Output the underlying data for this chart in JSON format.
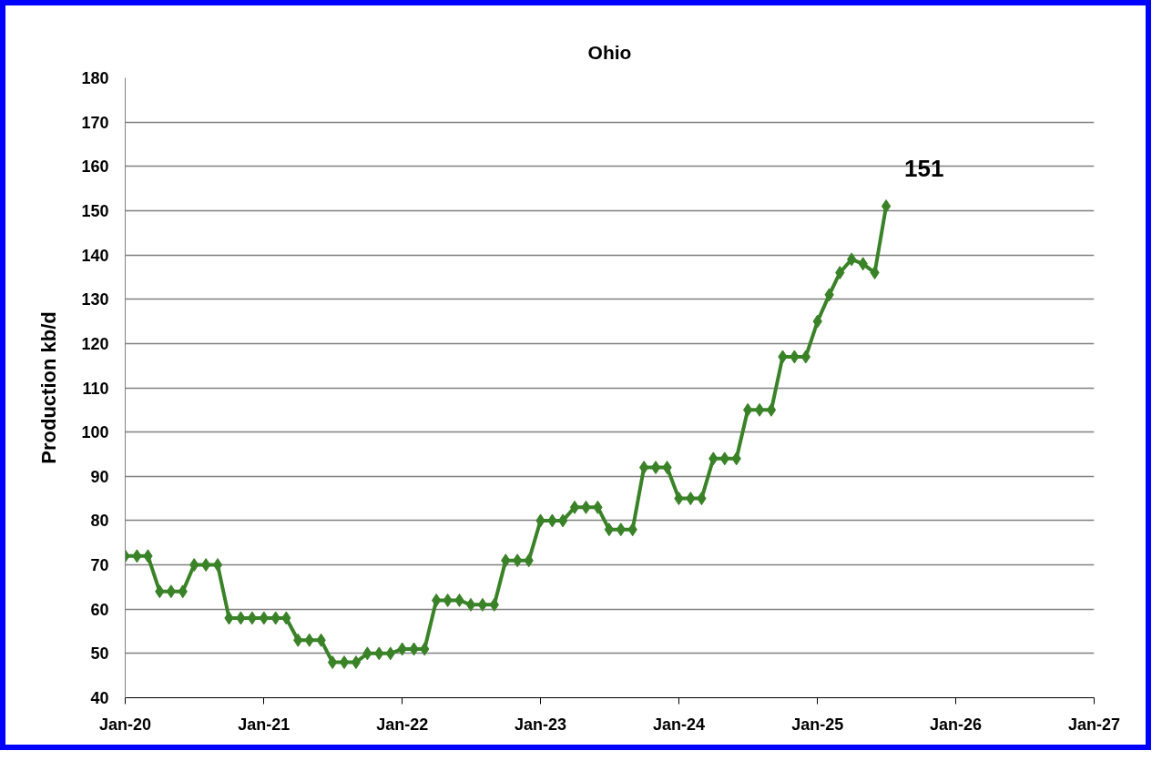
{
  "chart_data": {
    "type": "line",
    "title": "Ohio",
    "ylabel": "Production kb/d",
    "x": [
      "2020-01",
      "2020-02",
      "2020-03",
      "2020-04",
      "2020-05",
      "2020-06",
      "2020-07",
      "2020-08",
      "2020-09",
      "2020-10",
      "2020-11",
      "2020-12",
      "2021-01",
      "2021-02",
      "2021-03",
      "2021-04",
      "2021-05",
      "2021-06",
      "2021-07",
      "2021-08",
      "2021-09",
      "2021-10",
      "2021-11",
      "2021-12",
      "2022-01",
      "2022-02",
      "2022-03",
      "2022-04",
      "2022-05",
      "2022-06",
      "2022-07",
      "2022-08",
      "2022-09",
      "2022-10",
      "2022-11",
      "2022-12",
      "2023-01",
      "2023-02",
      "2023-03",
      "2023-04",
      "2023-05",
      "2023-06",
      "2023-07",
      "2023-08",
      "2023-09",
      "2023-10",
      "2023-11",
      "2023-12",
      "2024-01",
      "2024-02",
      "2024-03",
      "2024-04",
      "2024-05",
      "2024-06",
      "2024-07",
      "2024-08",
      "2024-09",
      "2024-10",
      "2024-11",
      "2024-12",
      "2025-01",
      "2025-02",
      "2025-03",
      "2025-04",
      "2025-05",
      "2025-06",
      "2025-07"
    ],
    "series": [
      {
        "color": "#3a8228",
        "values": [
          72,
          72,
          72,
          64,
          64,
          64,
          70,
          70,
          70,
          58,
          58,
          58,
          58,
          58,
          58,
          53,
          53,
          53,
          48,
          48,
          48,
          50,
          50,
          50,
          51,
          51,
          51,
          62,
          62,
          62,
          61,
          61,
          61,
          71,
          71,
          71,
          80,
          80,
          80,
          83,
          83,
          83,
          78,
          78,
          78,
          92,
          92,
          92,
          85,
          85,
          85,
          94,
          94,
          94,
          105,
          105,
          105,
          117,
          117,
          117,
          125,
          131,
          136,
          139,
          138,
          136,
          151
        ]
      }
    ],
    "xlim": [
      "2020-01",
      "2027-01"
    ],
    "xticks": [
      {
        "value": "2020-01",
        "label": "Jan-20"
      },
      {
        "value": "2021-01",
        "label": "Jan-21"
      },
      {
        "value": "2022-01",
        "label": "Jan-22"
      },
      {
        "value": "2023-01",
        "label": "Jan-23"
      },
      {
        "value": "2024-01",
        "label": "Jan-24"
      },
      {
        "value": "2025-01",
        "label": "Jan-25"
      },
      {
        "value": "2026-01",
        "label": "Jan-26"
      },
      {
        "value": "2027-01",
        "label": "Jan-27"
      }
    ],
    "ylim": [
      40,
      180
    ],
    "yticks": [
      40,
      50,
      60,
      70,
      80,
      90,
      100,
      110,
      120,
      130,
      140,
      150,
      160,
      170,
      180
    ],
    "annotations": [
      {
        "text": "151",
        "x": "2025-07",
        "y": 151
      }
    ],
    "grid": "y",
    "marker": "diamond",
    "line_style": "solid"
  }
}
